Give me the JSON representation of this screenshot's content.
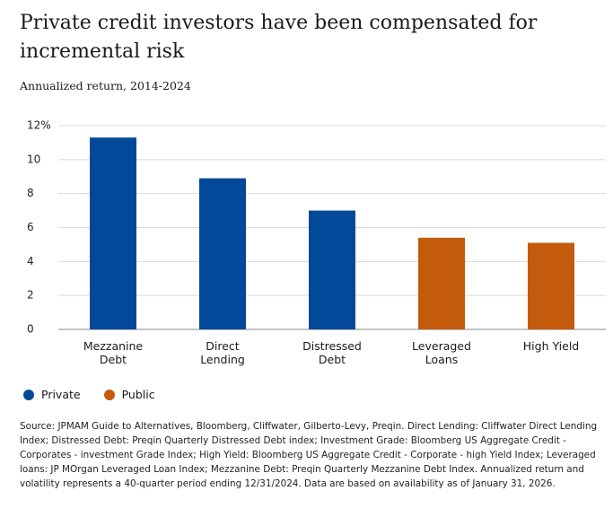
{
  "chart_data": {
    "type": "bar",
    "title": "Private credit investors have been compensated for incremental risk",
    "subtitle": "Annualized return, 2014-2024",
    "categories": [
      "Mezzanine Debt",
      "Direct Lending",
      "Distressed Debt",
      "Leveraged Loans",
      "High Yield"
    ],
    "series": [
      {
        "name": "Private",
        "color": "#024a99",
        "values": [
          11.3,
          8.9,
          7.0,
          null,
          null
        ]
      },
      {
        "name": "Public",
        "color": "#c45a0c",
        "values": [
          null,
          null,
          null,
          5.4,
          5.1
        ]
      }
    ],
    "ylim": [
      0,
      12
    ],
    "yticks": [
      0,
      2,
      4,
      6,
      8,
      10,
      {
        "value": 12,
        "label": "12%"
      }
    ],
    "grid": true,
    "legend": "bottom",
    "source": "Source: JPMAM Guide to Alternatives, Bloomberg, Cliffwater, Gilberto-Levy, Preqin. Direct Lending: Cliffwater Direct Lending Index; Distressed Debt: Preqin Quarterly Distressed Debt index; Investment Grade: Bloomberg US Aggregate Credit - Corporates - investment Grade Index; High Yield: Bloomberg US Aggregate Credit - Corporate - high Yield Index; Leveraged loans: JP MOrgan Leveraged Loan Index; Mezzanine Debt: Preqin Quarterly Mezzanine Debt Index. Annualized return and volatility represents a 40-quarter period ending 12/31/2024. Data are based on availability as of January 31, 2026."
  }
}
